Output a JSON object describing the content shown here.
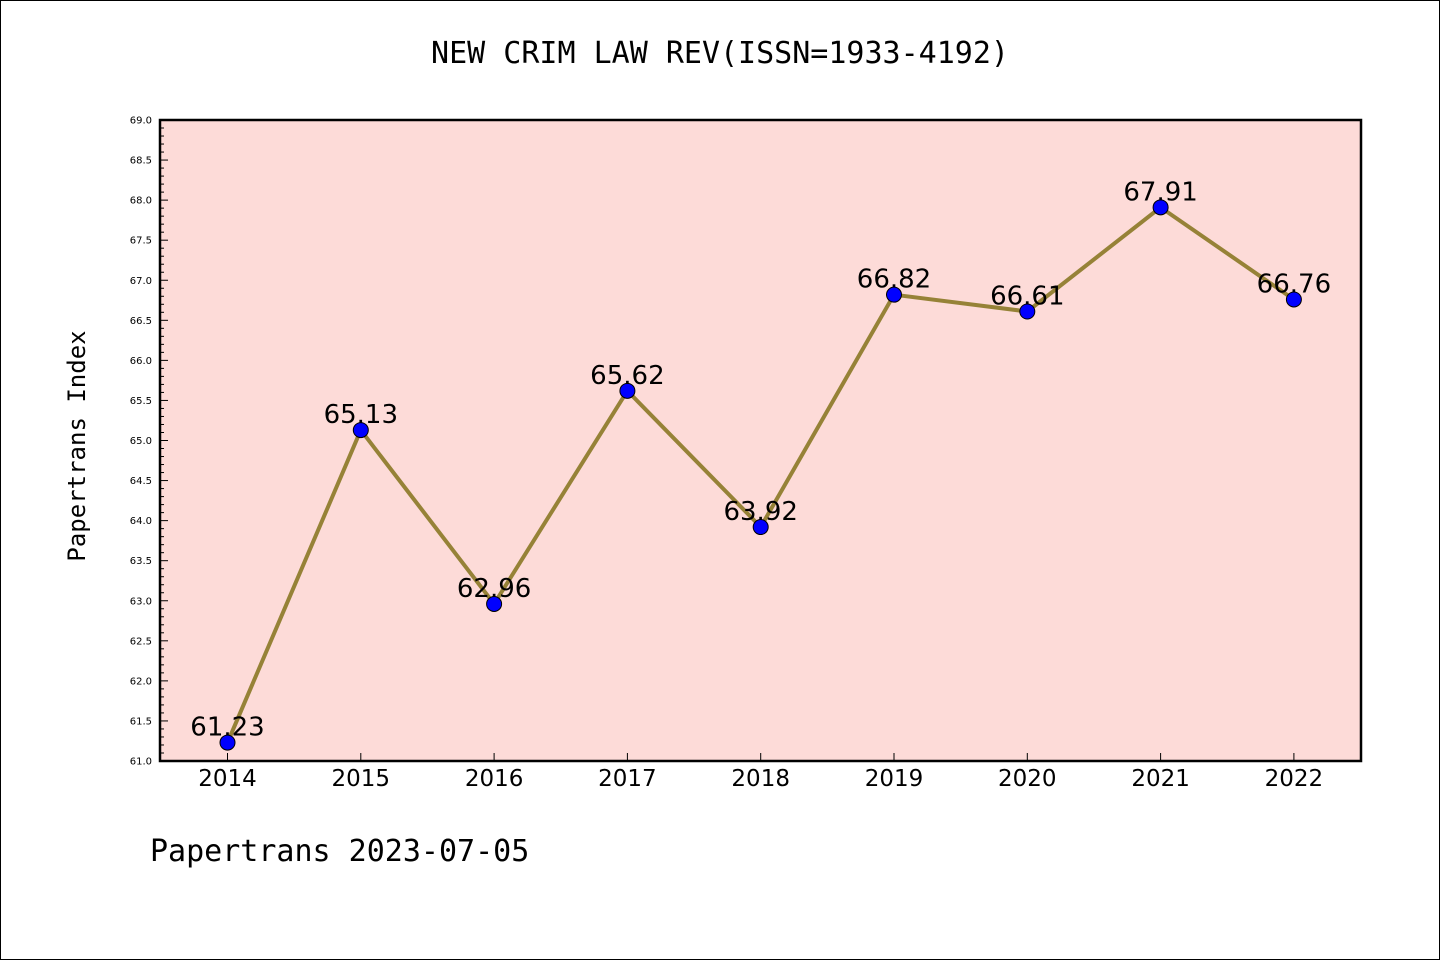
{
  "footer": {
    "text": "Papertrans 2023-07-05"
  },
  "chart_data": {
    "type": "line",
    "title": "NEW CRIM LAW REV(ISSN=1933-4192)",
    "xlabel": "",
    "ylabel": "Papertrans Index",
    "categories": [
      "2014",
      "2015",
      "2016",
      "2017",
      "2018",
      "2019",
      "2020",
      "2021",
      "2022"
    ],
    "series": [
      {
        "values": [
          61.23,
          65.13,
          62.96,
          65.62,
          63.92,
          66.82,
          66.61,
          67.91,
          66.76
        ],
        "data_labels": [
          "61.23",
          "65.13",
          "62.96",
          "65.62",
          "63.92",
          "66.82",
          "66.61",
          "67.91",
          "66.76"
        ],
        "line_color": "#968237",
        "marker_color": "#0000ff"
      }
    ],
    "ylim": [
      61.0,
      69.0
    ],
    "y_ticks": [
      "61.0",
      "61.5",
      "62.0",
      "62.5",
      "63.0",
      "63.5",
      "64.0",
      "64.5",
      "65.0",
      "65.5",
      "66.0",
      "66.5",
      "67.0",
      "67.5",
      "68.0",
      "68.5",
      "69.0"
    ],
    "plot_background": "#fddbd8",
    "grid": false,
    "legend": "none"
  }
}
